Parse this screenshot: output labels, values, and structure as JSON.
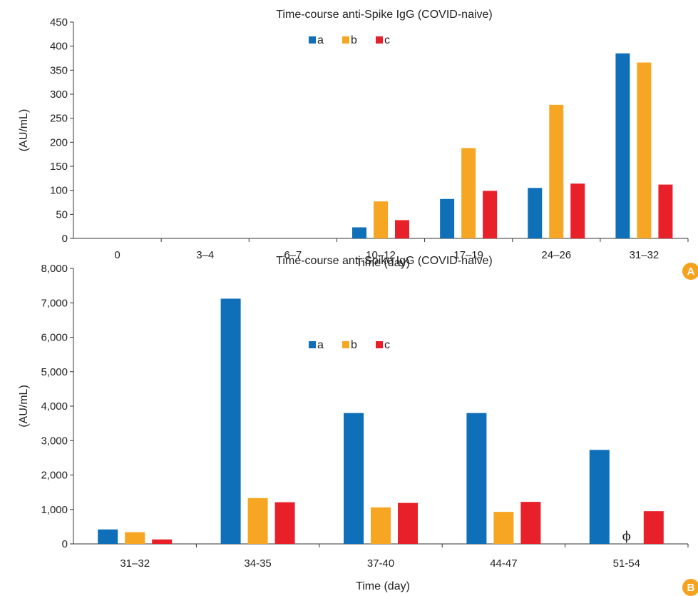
{
  "chart_data": [
    {
      "type": "bar",
      "panel": "A",
      "title": "Time-course anti-Spike IgG (COVID-naive)",
      "xlabel": "Time (day)",
      "ylabel": "(AU/mL)",
      "ylim": [
        0,
        450
      ],
      "yticks": [
        "0",
        "50",
        "100",
        "150",
        "200",
        "250",
        "300",
        "350",
        "400",
        "450"
      ],
      "categories": [
        "0",
        "3–4",
        "6–7",
        "10–12",
        "17–19",
        "24–26",
        "31–32"
      ],
      "series": [
        {
          "name": "a",
          "color": "#0f6fb8",
          "values": [
            0,
            0,
            0,
            23,
            82,
            105,
            385
          ]
        },
        {
          "name": "b",
          "color": "#f6a623",
          "values": [
            0,
            0,
            0,
            77,
            188,
            278,
            366
          ]
        },
        {
          "name": "c",
          "color": "#e8202a",
          "values": [
            0,
            0,
            0,
            38,
            99,
            114,
            112
          ]
        }
      ],
      "legend": "top-center",
      "grid": false
    },
    {
      "type": "bar",
      "panel": "B",
      "title": "Time-course anti-Spike IgG (COVID-naive)",
      "xlabel": "Time (day)",
      "ylabel": "(AU/mL)",
      "ylim": [
        0,
        8000
      ],
      "yticks": [
        "0",
        "1,000",
        "2,000",
        "3,000",
        "4,000",
        "5,000",
        "6,000",
        "7,000",
        "8,000"
      ],
      "categories": [
        "31–32",
        "34-35",
        "37-40",
        "44-47",
        "51-54"
      ],
      "series": [
        {
          "name": "a",
          "color": "#0f6fb8",
          "values": [
            420,
            7120,
            3800,
            3800,
            2730
          ]
        },
        {
          "name": "b",
          "color": "#f6a623",
          "values": [
            340,
            1330,
            1060,
            930,
            null
          ]
        },
        {
          "name": "c",
          "color": "#e8202a",
          "values": [
            130,
            1210,
            1190,
            1220,
            950
          ]
        }
      ],
      "annotations": [
        {
          "text": "ϕ",
          "category": "51-54",
          "series": "b"
        }
      ],
      "legend": "top-center",
      "grid": false
    }
  ],
  "panel_badges": {
    "a": "A",
    "b": "B"
  },
  "badge_color": "#f5a21e"
}
